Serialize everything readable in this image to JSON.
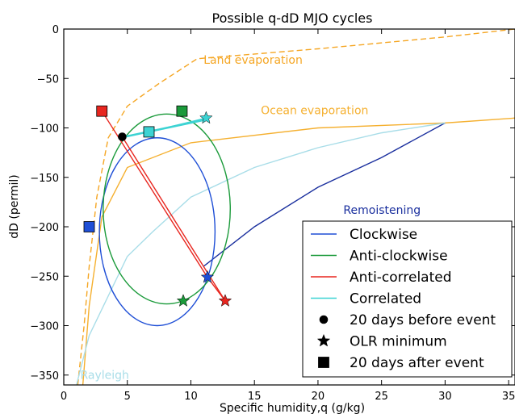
{
  "chart_data": {
    "type": "line",
    "title": "Possible q-dD MJO cycles",
    "xlabel": "Specific humidity,q (g/kg)",
    "ylabel": "dD (permil)",
    "xlim": [
      0,
      35.5
    ],
    "ylim": [
      -360,
      0
    ],
    "xticks": [
      "0",
      "5",
      "10",
      "15",
      "20",
      "25",
      "30",
      "35"
    ],
    "xtick_values": [
      0,
      5,
      10,
      15,
      20,
      25,
      30,
      35
    ],
    "yticks": [
      "0",
      "−50",
      "−100",
      "−150",
      "−200",
      "−250",
      "−300",
      "−350"
    ],
    "ytick_values": [
      0,
      -50,
      -100,
      -150,
      -200,
      -250,
      -300,
      -350
    ],
    "grid": false,
    "legend_position": "lower-right",
    "colors": {
      "clockwise": "#1f4fd6",
      "anticlockwise": "#1a9a3a",
      "anticorrelated": "#e8261f",
      "correlated": "#3cd3d3",
      "land": "#f5a623",
      "ocean": "#f5b030",
      "remoistening": "#1a2f9e",
      "rayleigh": "#a8dde8"
    },
    "annotations": [
      {
        "id": "land",
        "text": "Land evaporation",
        "x": 11,
        "y": -35
      },
      {
        "id": "ocean",
        "text": "Ocean evaporation",
        "x": 15.5,
        "y": -86
      },
      {
        "id": "remoistening",
        "text": "Remoistening",
        "x": 22,
        "y": -187
      },
      {
        "id": "rayleigh",
        "text": "Rayleigh",
        "x": 1.3,
        "y": -354
      }
    ],
    "reference_lines": [
      {
        "id": "land",
        "style": "dashed",
        "x": [
          1.1,
          1.6,
          2.0,
          2.6,
          3.5,
          5.0,
          7.5,
          10.5,
          20,
          30,
          35.5
        ],
        "y": [
          -360,
          -300,
          -240,
          -170,
          -110,
          -78,
          -55,
          -30,
          -20,
          -8,
          0
        ]
      },
      {
        "id": "ocean",
        "style": "solid",
        "x": [
          1.5,
          2.0,
          3.0,
          5.0,
          10.0,
          20.0,
          30.0,
          35.5
        ],
        "y": [
          -360,
          -280,
          -190,
          -140,
          -115,
          -100,
          -95,
          -90
        ]
      },
      {
        "id": "remoistening",
        "style": "solid",
        "x": [
          11.0,
          15.0,
          20.0,
          25.0,
          30.0
        ],
        "y": [
          -240,
          -200,
          -160,
          -130,
          -95
        ]
      },
      {
        "id": "rayleigh",
        "style": "solid",
        "x": [
          1.0,
          2.0,
          3.5,
          5.0,
          7.0,
          10.0,
          15.0,
          20.0,
          25.0,
          30.0
        ],
        "y": [
          -360,
          -310,
          -270,
          -230,
          -205,
          -170,
          -140,
          -120,
          -105,
          -95
        ]
      }
    ],
    "cycles": [
      {
        "id": "clockwise",
        "kind": "ellipse",
        "center": [
          7.35,
          -205
        ],
        "radius": [
          4.55,
          95
        ]
      },
      {
        "id": "anticlockwise",
        "kind": "ellipse",
        "center": [
          8.1,
          -182
        ],
        "radius": [
          5.0,
          96
        ]
      },
      {
        "id": "anticorrelated",
        "kind": "lines",
        "x": [
          3.0,
          11.3,
          12.7
        ],
        "y": [
          -83,
          -251,
          -275
        ]
      },
      {
        "id": "anticorrelated2",
        "kind": "lines",
        "color_key": "anticorrelated",
        "x": [
          4.6,
          12.7
        ],
        "y": [
          -109,
          -275
        ]
      },
      {
        "id": "correlated",
        "kind": "lines",
        "x": [
          4.6,
          6.7,
          11.2
        ],
        "y": [
          -109,
          -104,
          -90
        ]
      },
      {
        "id": "correlated2",
        "kind": "lines",
        "color_key": "correlated",
        "x": [
          4.6,
          11.2
        ],
        "y": [
          -109,
          -91
        ]
      },
      {
        "id": "correlated3",
        "kind": "lines",
        "color_key": "correlated",
        "x": [
          4.6,
          11.2
        ],
        "y": [
          -110,
          -92
        ]
      }
    ],
    "markers": [
      {
        "id": "start",
        "shape": "circle",
        "color": "#000000",
        "x": 4.6,
        "y": -109
      },
      {
        "id": "clockwise-min",
        "shape": "star",
        "color_key": "clockwise",
        "x": 11.3,
        "y": -251
      },
      {
        "id": "anticlockwise-min",
        "shape": "star",
        "color_key": "anticlockwise",
        "x": 9.4,
        "y": -275
      },
      {
        "id": "anticorrelated-min",
        "shape": "star",
        "color_key": "anticorrelated",
        "x": 12.7,
        "y": -275
      },
      {
        "id": "correlated-min",
        "shape": "star",
        "color_key": "correlated",
        "x": 11.2,
        "y": -90
      },
      {
        "id": "clockwise-end",
        "shape": "square",
        "color_key": "clockwise",
        "x": 2.0,
        "y": -200
      },
      {
        "id": "anticlockwise-end",
        "shape": "square",
        "color_key": "anticlockwise",
        "x": 9.3,
        "y": -83
      },
      {
        "id": "anticorrelated-end",
        "shape": "square",
        "color_key": "anticorrelated",
        "x": 3.0,
        "y": -83
      },
      {
        "id": "correlated-end",
        "shape": "square",
        "color_key": "correlated",
        "x": 6.7,
        "y": -104
      }
    ],
    "legend": [
      {
        "label": "Clockwise",
        "kind": "line",
        "color_key": "clockwise"
      },
      {
        "label": "Anti-clockwise",
        "kind": "line",
        "color_key": "anticlockwise"
      },
      {
        "label": "Anti-correlated",
        "kind": "line",
        "color_key": "anticorrelated"
      },
      {
        "label": "Correlated",
        "kind": "line",
        "color_key": "correlated"
      },
      {
        "label": "20 days before event",
        "kind": "circle"
      },
      {
        "label": "OLR minimum",
        "kind": "star"
      },
      {
        "label": "20 days after event",
        "kind": "square"
      }
    ]
  }
}
